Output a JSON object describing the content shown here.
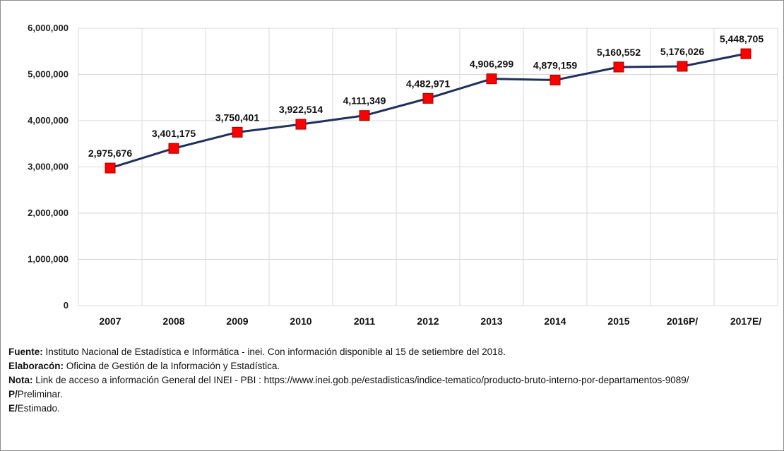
{
  "chart_data": {
    "type": "line",
    "categories": [
      "2007",
      "2008",
      "2009",
      "2010",
      "2011",
      "2012",
      "2013",
      "2014",
      "2015",
      "2016P/",
      "2017E/"
    ],
    "values": [
      2975676,
      3401175,
      3750401,
      3922514,
      4111349,
      4482971,
      4906299,
      4879159,
      5160552,
      5176026,
      5448705
    ],
    "data_labels": [
      "2,975,676",
      "3,401,175",
      "3,750,401",
      "3,922,514",
      "4,111,349",
      "4,482,971",
      "4,906,299",
      "4,879,159",
      "5,160,552",
      "5,176,026",
      "5,448,705"
    ],
    "ylim": [
      0,
      6000000
    ],
    "yticks": [
      0,
      1000000,
      2000000,
      3000000,
      4000000,
      5000000,
      6000000
    ],
    "ytick_labels": [
      "0",
      "1,000,000",
      "2,000,000",
      "3,000,000",
      "4,000,000",
      "5,000,000",
      "6,000,000"
    ],
    "grid": true,
    "line_color": "#1f2f5f",
    "marker_color": "#ff0000",
    "marker": "square",
    "title": "",
    "xlabel": "",
    "ylabel": ""
  },
  "notes": {
    "source_label": "Fuente:",
    "source_text": " Instituto Nacional de Estadística e Informática - inei. Con información disponible al 15 de setiembre del 2018.",
    "elab_label": "Elaboracón:",
    "elab_text": " Oficina de Gestión de la Información y Estadística.",
    "note_label": "Nota:",
    "note_text": " Link de acceso a información General del INEI - PBI : https://www.inei.gob.pe/estadisticas/indice-tematico/producto-bruto-interno-por-departamentos-9089/",
    "p_label": "P/",
    "p_text": "Preliminar.",
    "e_label": "E/",
    "e_text": "Estimado."
  }
}
